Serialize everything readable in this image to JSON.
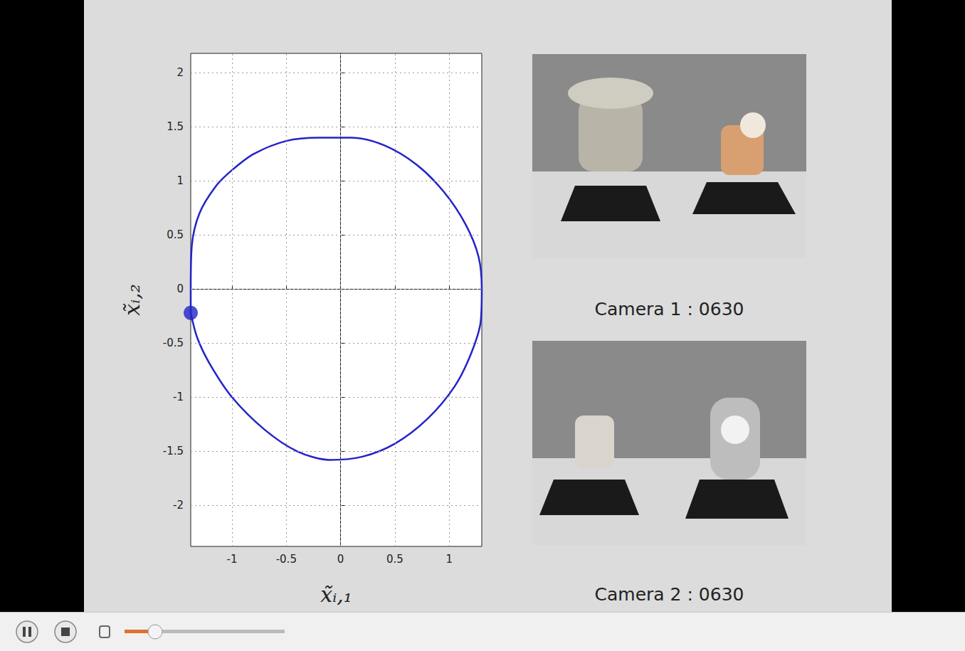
{
  "chart_data": {
    "type": "line",
    "xlabel": "x̃ᵢ,₁",
    "ylabel": "x̃ᵢ,₂",
    "x": [
      -1.38,
      -1.38,
      -1.37,
      -1.3,
      -1.15,
      -1.0,
      -0.8,
      -0.5,
      -0.2,
      0.1,
      0.4,
      0.7,
      0.95,
      1.15,
      1.27,
      1.3,
      1.29,
      1.2,
      1.05,
      0.8,
      0.5,
      0.2,
      -0.1,
      -0.4,
      -0.7,
      -1.0,
      -1.2,
      -1.32,
      -1.38
    ],
    "values": [
      -0.22,
      0.0,
      0.4,
      0.7,
      0.95,
      1.1,
      1.25,
      1.37,
      1.4,
      1.4,
      1.33,
      1.15,
      0.9,
      0.6,
      0.3,
      0.0,
      -0.3,
      -0.6,
      -0.9,
      -1.2,
      -1.43,
      -1.55,
      -1.58,
      -1.5,
      -1.3,
      -1.0,
      -0.7,
      -0.45,
      -0.22
    ],
    "current_point": {
      "x": -1.38,
      "y": -0.22
    },
    "color": "#2323c8",
    "xlim": [
      -1.38,
      1.3
    ],
    "xticks": [
      -1,
      -0.5,
      0,
      0.5,
      1
    ],
    "ylim": [
      -2.38,
      2.18
    ],
    "yticks": [
      -2,
      -1.5,
      -1,
      -0.5,
      0,
      0.5,
      1,
      1.5,
      2
    ],
    "grid": true
  },
  "panels": [
    {
      "caption": "Camera 1 : 0630"
    },
    {
      "caption": "Camera 2 : 0630"
    }
  ]
}
